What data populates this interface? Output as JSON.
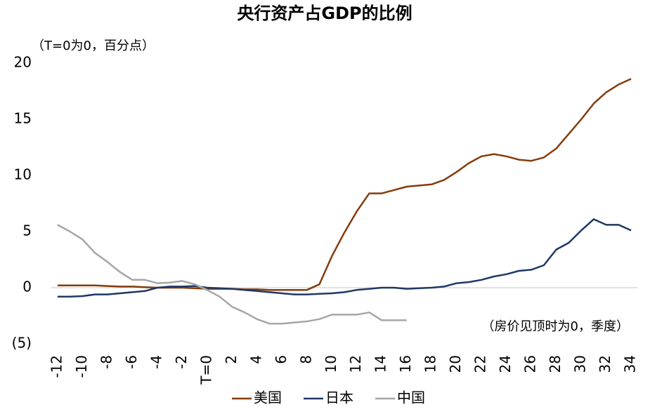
{
  "chart_data": {
    "type": "line",
    "title": "央行资产占GDP的比例",
    "y_axis_label": "（T=0为0，百分点）",
    "x_axis_label": "（房价见顶时为0，季度）",
    "x": [
      -12,
      -11,
      -10,
      -9,
      -8,
      -7,
      -6,
      -5,
      -4,
      -3,
      -2,
      -1,
      0,
      1,
      2,
      3,
      4,
      5,
      6,
      7,
      8,
      9,
      10,
      11,
      12,
      13,
      14,
      15,
      16,
      17,
      18,
      19,
      20,
      21,
      22,
      23,
      24,
      25,
      26,
      27,
      28,
      29,
      30,
      31,
      32,
      33,
      34
    ],
    "series": [
      {
        "name": "美国",
        "color": "#843c0c",
        "values": [
          0.2,
          0.2,
          0.2,
          0.2,
          0.15,
          0.1,
          0.1,
          0.05,
          0,
          0,
          0,
          -0.05,
          -0.1,
          -0.1,
          -0.1,
          -0.15,
          -0.15,
          -0.2,
          -0.2,
          -0.2,
          -0.2,
          0.3,
          2.8,
          4.9,
          6.8,
          8.4,
          8.4,
          8.7,
          9.0,
          9.1,
          9.2,
          9.6,
          10.3,
          11.1,
          11.7,
          11.9,
          11.7,
          11.4,
          11.3,
          11.6,
          12.4,
          13.7,
          15.0,
          16.4,
          17.4,
          18.1,
          18.6
        ]
      },
      {
        "name": "日本",
        "color": "#1f3864",
        "values": [
          -0.8,
          -0.8,
          -0.75,
          -0.6,
          -0.6,
          -0.5,
          -0.4,
          -0.3,
          0,
          0.1,
          0.1,
          0.15,
          0,
          -0.05,
          -0.1,
          -0.2,
          -0.3,
          -0.4,
          -0.5,
          -0.6,
          -0.6,
          -0.55,
          -0.5,
          -0.4,
          -0.2,
          -0.1,
          0,
          0,
          -0.1,
          -0.05,
          0,
          0.1,
          0.4,
          0.5,
          0.7,
          1.0,
          1.2,
          1.5,
          1.6,
          2.0,
          3.4,
          4.0,
          5.1,
          6.1,
          5.6,
          5.6,
          5.1
        ]
      },
      {
        "name": "中国",
        "color": "#a6a6a6",
        "values": [
          5.6,
          5.0,
          4.3,
          3.1,
          2.3,
          1.4,
          0.7,
          0.7,
          0.4,
          0.45,
          0.6,
          0.3,
          -0.2,
          -0.8,
          -1.7,
          -2.2,
          -2.8,
          -3.2,
          -3.2,
          -3.1,
          -3.0,
          -2.8,
          -2.4,
          -2.4,
          -2.4,
          -2.2,
          -2.9,
          -2.9,
          -2.9,
          null,
          null,
          null,
          null,
          null,
          null,
          null,
          null,
          null,
          null,
          null,
          null,
          null,
          null,
          null,
          null,
          null,
          null
        ]
      }
    ],
    "xlim": [
      -12.5,
      34.5
    ],
    "xticks": [
      -12,
      -10,
      -8,
      -6,
      -4,
      -2,
      {
        "value": 0,
        "label": "T=0"
      },
      2,
      4,
      6,
      8,
      10,
      12,
      14,
      16,
      18,
      20,
      22,
      24,
      26,
      28,
      30,
      32,
      34
    ],
    "ylim": [
      -5,
      20
    ],
    "yticks": [
      20,
      15,
      10,
      5,
      0,
      {
        "value": -5,
        "label": "(5)"
      }
    ],
    "negative_tick_color": "#c00000",
    "grid": false,
    "legend": "bottom"
  }
}
